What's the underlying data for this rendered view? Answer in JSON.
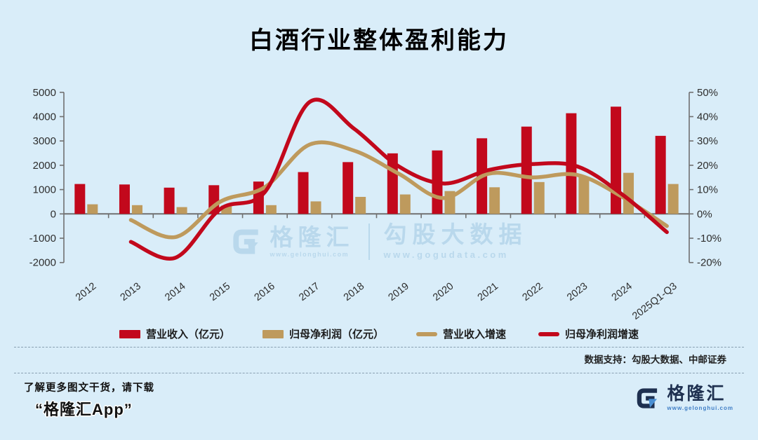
{
  "title": "白酒行业整体盈利能力",
  "source_note": "数据支持：勾股大数据、中邮证券",
  "watermark": {
    "brand": "格隆汇",
    "brand_url": "www.gelonghui.com",
    "data_brand": "勾股大数据",
    "data_url": "www.gogudata.com"
  },
  "footer": {
    "promo_line1": "了解更多图文干货，请下载",
    "promo_line2": "“格隆汇App”",
    "brand": "格隆汇",
    "brand_url": "www.gelonghui.com"
  },
  "colors": {
    "bg": "#d9edf9",
    "red": "#c2081c",
    "tan": "#be9a5d",
    "navy": "#1e3050",
    "blue": "#3f7ec6",
    "wm": "#b9d8ec",
    "axis": "#707070",
    "tick-text": "#2e2e2e"
  },
  "chart_data": {
    "type": "bar",
    "subtype": "combo-bar-line-dual-axis",
    "title": "白酒行业整体盈利能力",
    "categories": [
      "2012",
      "2013",
      "2014",
      "2015",
      "2016",
      "2017",
      "2018",
      "2019",
      "2020",
      "2021",
      "2022",
      "2023",
      "2024",
      "2025Q1-Q3"
    ],
    "series": [
      {
        "name": "营业收入（亿元）",
        "type": "bar",
        "axis": "left",
        "color": "#c2081c",
        "values": [
          1230,
          1210,
          1080,
          1180,
          1330,
          1720,
          2130,
          2490,
          2610,
          3110,
          3590,
          4140,
          4410,
          3210
        ]
      },
      {
        "name": "归母净利润（亿元）",
        "type": "bar",
        "axis": "left",
        "color": "#be9a5d",
        "values": [
          395,
          360,
          280,
          345,
          360,
          515,
          700,
          800,
          940,
          1095,
          1310,
          1520,
          1690,
          1230
        ]
      },
      {
        "name": "营业收入增速",
        "type": "line",
        "axis": "right",
        "color": "#be9a5d",
        "values": [
          null,
          -2.5,
          -9.5,
          5,
          11,
          28.5,
          26,
          16.5,
          6.5,
          16.5,
          15,
          16,
          7,
          -5
        ]
      },
      {
        "name": "归母净利润增速",
        "type": "line",
        "axis": "right",
        "color": "#c2081c",
        "values": [
          null,
          -11.5,
          -18,
          2,
          9,
          46,
          35,
          19.5,
          12.5,
          18,
          20.5,
          19.5,
          8,
          -7.5
        ]
      }
    ],
    "left_axis": {
      "min": -2000,
      "max": 5000,
      "step": 1000
    },
    "right_axis": {
      "min": -20,
      "max": 50,
      "step": 10,
      "suffix": "%"
    },
    "grid": false,
    "legend_position": "bottom"
  }
}
